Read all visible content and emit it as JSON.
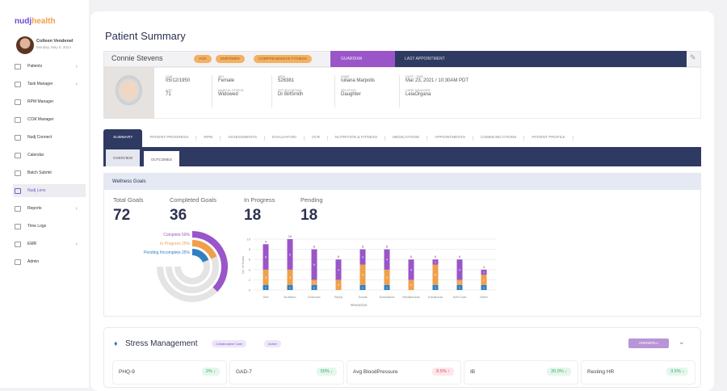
{
  "brand": {
    "logo_a": "nudj",
    "logo_b": "health"
  },
  "user": {
    "name": "Colleen Vendenel",
    "date": "Monday, May 6, 2024"
  },
  "sidebar": {
    "items": [
      {
        "label": "Patients",
        "chevron": true
      },
      {
        "label": "Task Manager",
        "chevron": true
      },
      {
        "label": "RPM Manager"
      },
      {
        "label": "CCM Manager"
      },
      {
        "label": "Nudj Connect"
      },
      {
        "label": "Calendar"
      },
      {
        "label": "Batch Submit"
      },
      {
        "label": "Nudj Lens",
        "active": true
      },
      {
        "label": "Reports",
        "chevron": true
      },
      {
        "label": "Time Logs"
      },
      {
        "label": "EMR",
        "chevron": true
      },
      {
        "label": "Admin"
      }
    ]
  },
  "page": {
    "title": "Patient Summary"
  },
  "patient": {
    "name": "Connie Stevens",
    "tags": [
      "VCR",
      "EMPOWER",
      "COMPREHENSIVE FITNESS"
    ],
    "guardian_label": "GUARDIAN",
    "last_appt_label": "LAST APPOINTMENT",
    "fields": [
      {
        "l1": "DOB",
        "v1": "05/12/1950",
        "l2": "AGE",
        "v2": "71"
      },
      {
        "l1": "SEX",
        "v1": "Female",
        "l2": "MARITAL STATUS",
        "v2": "Widowed"
      },
      {
        "l1": "MRN",
        "v1": "526381",
        "l2": "PCP PHYSICIAN",
        "v2": "Dr BillSmith"
      },
      {
        "l1": "NAME",
        "v1": "Iuliana Marpolis",
        "l2": "RELATION",
        "v2": "Daughter"
      },
      {
        "l1": "DATE / TIME",
        "v1": "Mar 23, 2021 / 10:30AM PDT",
        "l2": "CARE MANAGER",
        "v2": "LeiaOrgana"
      }
    ]
  },
  "tabs": [
    "Summary",
    "Patient Progress",
    "RPM",
    "Assessments",
    "Evaluation",
    "VCR",
    "Nutrition & Fitness",
    "Medications",
    "Appointments",
    "Communications",
    "Patient Profile"
  ],
  "active_tab": "Summary",
  "subtabs": [
    "Overview",
    "Outcomes"
  ],
  "wellness": {
    "title": "Wellness Goals",
    "stats": [
      {
        "label": "Total Goals",
        "value": "72"
      },
      {
        "label": "Completed Goals",
        "value": "36"
      },
      {
        "label": "In Progress",
        "value": "18"
      },
      {
        "label": "Pending",
        "value": "18"
      }
    ]
  },
  "chart_data": [
    {
      "type": "radial-bar",
      "series": [
        {
          "name": "Complete",
          "value": 50,
          "label": "50%",
          "color": "#9a55c9"
        },
        {
          "name": "In Progress",
          "value": 25,
          "label": "25%",
          "color": "#f0a04b"
        },
        {
          "name": "Pending /Incomplete",
          "value": 25,
          "label": "25%",
          "color": "#2f7fc1"
        }
      ],
      "max": 100
    },
    {
      "type": "bar",
      "stacked": true,
      "xlabel": "Interaction",
      "ylabel": "No. of Goals",
      "ylim": [
        0,
        10
      ],
      "yticks": [
        0,
        2,
        4,
        6,
        8,
        10
      ],
      "categories": [
        "Diet",
        "Nutrition",
        "Exercise",
        "Sleep",
        "Social",
        "Substance",
        "Mindfulness",
        "Emotional",
        "Self Care",
        "Other"
      ],
      "series": [
        {
          "color": "#2f7fc1",
          "values": [
            1,
            1,
            1,
            0,
            1,
            1,
            0,
            1,
            1,
            1
          ]
        },
        {
          "color": "#f0a04b",
          "values": [
            3,
            3,
            1,
            2,
            4,
            3,
            2,
            4,
            1,
            2
          ]
        },
        {
          "color": "#9a55c9",
          "values": [
            5,
            6,
            6,
            4,
            3,
            4,
            4,
            1,
            4,
            1
          ]
        }
      ],
      "totals": [
        9,
        10,
        8,
        6,
        8,
        8,
        6,
        6,
        6,
        4
      ]
    }
  ],
  "stress": {
    "title": "Stress Management",
    "tags": [
      "Collaborative Care",
      "Active"
    ],
    "button": "UNENROLL",
    "metrics": [
      {
        "name": "PHQ-9",
        "value": "2% ↓",
        "up": false
      },
      {
        "name": "GAD-7",
        "value": "50% ↓",
        "up": false
      },
      {
        "name": "Avg BloodPressure",
        "value": "8.5% ↑",
        "up": true
      },
      {
        "name": "IB",
        "value": "20.0% ↓",
        "up": false
      },
      {
        "name": "Resting HR",
        "value": "3.5% ↓",
        "up": false
      }
    ]
  }
}
